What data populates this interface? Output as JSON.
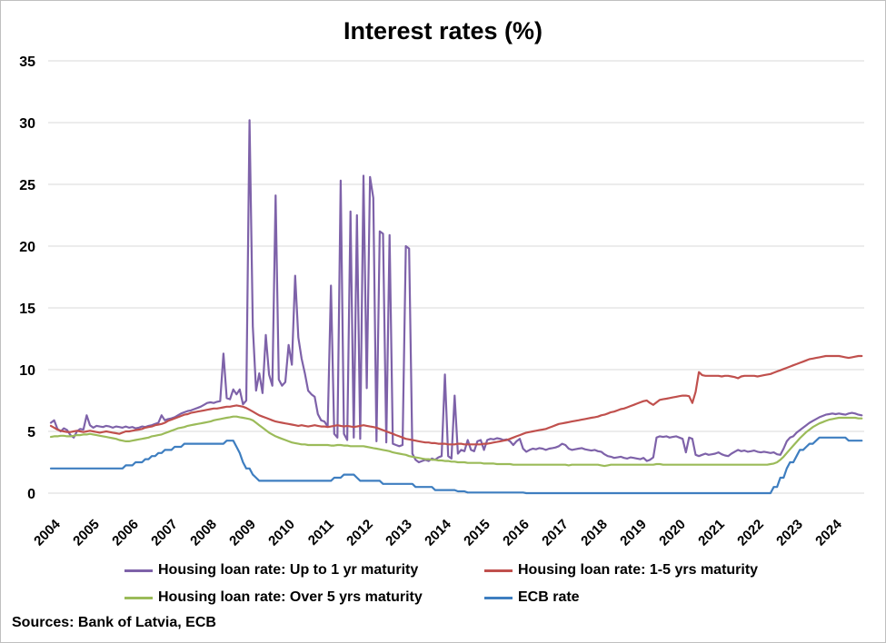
{
  "source_note": "Sources: Bank of Latvia, ECB",
  "colors": {
    "gridline": "#d9d9d9",
    "figure_border": "#bfbfbf",
    "text": "#000000"
  },
  "chart_data": {
    "type": "line",
    "title": "Interest rates (%)",
    "xlabel": "",
    "ylabel": "",
    "ylim": [
      0,
      35
    ],
    "yticks": [
      0,
      5,
      10,
      15,
      20,
      25,
      30,
      35
    ],
    "xticks": [
      2004,
      2005,
      2006,
      2007,
      2008,
      2009,
      2010,
      2011,
      2012,
      2013,
      2014,
      2015,
      2016,
      2017,
      2018,
      2019,
      2020,
      2021,
      2022,
      2023,
      2024
    ],
    "x_start_year": 2004,
    "x_interval": "monthly",
    "x_end": "2024-10",
    "grid": "horizontal",
    "legend_position": "bottom",
    "series": [
      {
        "id": "up_to_1yr",
        "name": "Housing loan rate: Up to 1 yr maturity",
        "color": "#7e62a9",
        "values": [
          5.7,
          5.9,
          5.2,
          5.0,
          5.25,
          5.1,
          4.7,
          4.5,
          5.0,
          5.2,
          5.15,
          6.3,
          5.5,
          5.3,
          5.45,
          5.4,
          5.35,
          5.45,
          5.4,
          5.3,
          5.4,
          5.35,
          5.3,
          5.4,
          5.3,
          5.35,
          5.25,
          5.3,
          5.4,
          5.35,
          5.45,
          5.5,
          5.6,
          5.7,
          6.3,
          5.9,
          6.0,
          6.05,
          6.15,
          6.3,
          6.45,
          6.55,
          6.65,
          6.7,
          6.8,
          6.9,
          7.0,
          7.15,
          7.3,
          7.35,
          7.3,
          7.4,
          7.45,
          11.3,
          7.7,
          7.6,
          8.4,
          8.0,
          8.4,
          7.2,
          7.5,
          30.2,
          13.5,
          8.3,
          9.7,
          8.1,
          12.8,
          9.6,
          8.7,
          24.1,
          9.2,
          8.7,
          9.0,
          12.0,
          10.4,
          17.6,
          12.6,
          10.9,
          9.7,
          8.3,
          8.0,
          7.8,
          6.4,
          5.9,
          5.8,
          5.4,
          16.8,
          4.8,
          4.5,
          25.3,
          4.8,
          4.3,
          22.8,
          4.5,
          22.5,
          4.4,
          25.7,
          8.5,
          25.6,
          23.9,
          4.2,
          21.2,
          21.0,
          4.1,
          20.9,
          4.0,
          3.9,
          3.8,
          3.9,
          20.0,
          19.8,
          3.2,
          2.7,
          2.5,
          2.6,
          2.7,
          2.6,
          2.8,
          2.7,
          2.9,
          3.0,
          9.6,
          3.0,
          2.8,
          7.9,
          3.2,
          3.5,
          3.4,
          4.3,
          3.5,
          3.4,
          4.2,
          4.3,
          3.5,
          4.3,
          4.4,
          4.35,
          4.45,
          4.4,
          4.3,
          4.35,
          4.2,
          3.9,
          4.2,
          4.4,
          3.6,
          3.35,
          3.5,
          3.6,
          3.55,
          3.65,
          3.6,
          3.5,
          3.6,
          3.65,
          3.7,
          3.8,
          4.0,
          3.9,
          3.6,
          3.5,
          3.55,
          3.6,
          3.65,
          3.55,
          3.5,
          3.45,
          3.5,
          3.4,
          3.35,
          3.15,
          3.0,
          2.95,
          2.85,
          2.9,
          2.95,
          2.85,
          2.8,
          2.9,
          2.85,
          2.8,
          2.75,
          2.85,
          2.6,
          2.7,
          2.9,
          4.5,
          4.6,
          4.55,
          4.6,
          4.5,
          4.55,
          4.6,
          4.5,
          4.4,
          3.3,
          4.5,
          4.4,
          3.1,
          3.0,
          3.1,
          3.2,
          3.1,
          3.15,
          3.2,
          3.3,
          3.15,
          3.05,
          3.0,
          3.2,
          3.35,
          3.5,
          3.4,
          3.45,
          3.35,
          3.4,
          3.45,
          3.35,
          3.3,
          3.35,
          3.3,
          3.25,
          3.3,
          3.15,
          3.1,
          3.6,
          4.2,
          4.5,
          4.6,
          4.9,
          5.1,
          5.3,
          5.5,
          5.7,
          5.85,
          6.0,
          6.15,
          6.25,
          6.35,
          6.4,
          6.45,
          6.4,
          6.45,
          6.4,
          6.35,
          6.45,
          6.5,
          6.45,
          6.35,
          6.3
        ]
      },
      {
        "id": "1_5yrs",
        "name": "Housing loan rate: 1-5 yrs maturity",
        "color": "#c0504d",
        "values": [
          5.45,
          5.3,
          5.15,
          5.05,
          5.0,
          4.95,
          4.95,
          5.0,
          5.05,
          5.0,
          4.95,
          5.0,
          5.05,
          5.0,
          4.95,
          4.9,
          4.95,
          5.0,
          4.95,
          4.9,
          4.85,
          4.8,
          4.9,
          5.0,
          5.0,
          5.05,
          5.1,
          5.15,
          5.2,
          5.3,
          5.35,
          5.4,
          5.5,
          5.55,
          5.6,
          5.7,
          5.85,
          5.95,
          6.05,
          6.15,
          6.25,
          6.35,
          6.4,
          6.5,
          6.55,
          6.6,
          6.65,
          6.7,
          6.75,
          6.8,
          6.85,
          6.85,
          6.9,
          6.95,
          7.0,
          7.0,
          7.05,
          7.1,
          7.05,
          7.0,
          6.9,
          6.75,
          6.6,
          6.45,
          6.3,
          6.2,
          6.1,
          6.0,
          5.9,
          5.8,
          5.75,
          5.7,
          5.65,
          5.6,
          5.55,
          5.5,
          5.45,
          5.5,
          5.45,
          5.4,
          5.45,
          5.5,
          5.45,
          5.4,
          5.4,
          5.35,
          5.4,
          5.45,
          5.5,
          5.45,
          5.4,
          5.45,
          5.4,
          5.35,
          5.4,
          5.45,
          5.5,
          5.45,
          5.4,
          5.35,
          5.3,
          5.2,
          5.1,
          5.0,
          4.9,
          4.8,
          4.7,
          4.6,
          4.5,
          4.4,
          4.35,
          4.3,
          4.25,
          4.2,
          4.15,
          4.1,
          4.1,
          4.05,
          4.05,
          4.0,
          4.0,
          4.0,
          3.95,
          3.95,
          3.95,
          4.0,
          4.0,
          3.95,
          3.95,
          3.95,
          3.95,
          3.95,
          3.95,
          4.0,
          4.0,
          4.05,
          4.1,
          4.15,
          4.2,
          4.25,
          4.3,
          4.4,
          4.5,
          4.6,
          4.7,
          4.8,
          4.9,
          4.95,
          5.0,
          5.05,
          5.1,
          5.15,
          5.2,
          5.3,
          5.4,
          5.5,
          5.6,
          5.65,
          5.7,
          5.75,
          5.8,
          5.85,
          5.9,
          5.95,
          6.0,
          6.05,
          6.1,
          6.15,
          6.2,
          6.3,
          6.35,
          6.45,
          6.55,
          6.6,
          6.7,
          6.8,
          6.85,
          6.95,
          7.05,
          7.15,
          7.25,
          7.35,
          7.45,
          7.5,
          7.3,
          7.15,
          7.35,
          7.55,
          7.6,
          7.65,
          7.7,
          7.75,
          7.8,
          7.85,
          7.9,
          7.9,
          7.85,
          7.3,
          8.2,
          9.8,
          9.55,
          9.5,
          9.5,
          9.5,
          9.5,
          9.5,
          9.45,
          9.5,
          9.5,
          9.45,
          9.4,
          9.3,
          9.45,
          9.5,
          9.5,
          9.5,
          9.5,
          9.45,
          9.5,
          9.55,
          9.6,
          9.65,
          9.75,
          9.85,
          9.95,
          10.05,
          10.15,
          10.25,
          10.35,
          10.45,
          10.55,
          10.65,
          10.75,
          10.85,
          10.9,
          10.95,
          11.0,
          11.05,
          11.1,
          11.1,
          11.1,
          11.1,
          11.1,
          11.05,
          11.0,
          10.95,
          11.0,
          11.05,
          11.1,
          11.1
        ]
      },
      {
        "id": "over_5yrs",
        "name": "Housing loan rate: Over 5 yrs maturity",
        "color": "#9bbb59",
        "values": [
          4.55,
          4.6,
          4.6,
          4.65,
          4.65,
          4.6,
          4.6,
          4.65,
          4.7,
          4.7,
          4.75,
          4.75,
          4.8,
          4.75,
          4.7,
          4.65,
          4.6,
          4.55,
          4.5,
          4.45,
          4.4,
          4.3,
          4.25,
          4.2,
          4.2,
          4.25,
          4.3,
          4.35,
          4.4,
          4.45,
          4.5,
          4.6,
          4.65,
          4.7,
          4.75,
          4.85,
          4.95,
          5.05,
          5.15,
          5.25,
          5.3,
          5.35,
          5.45,
          5.5,
          5.55,
          5.6,
          5.65,
          5.7,
          5.75,
          5.8,
          5.9,
          5.95,
          6.0,
          6.05,
          6.1,
          6.15,
          6.2,
          6.2,
          6.15,
          6.1,
          6.05,
          6.0,
          5.9,
          5.7,
          5.5,
          5.3,
          5.1,
          4.9,
          4.75,
          4.6,
          4.5,
          4.4,
          4.3,
          4.2,
          4.1,
          4.05,
          4.0,
          3.95,
          3.95,
          3.9,
          3.9,
          3.9,
          3.9,
          3.9,
          3.9,
          3.9,
          3.85,
          3.85,
          3.9,
          3.9,
          3.85,
          3.85,
          3.8,
          3.8,
          3.8,
          3.8,
          3.8,
          3.75,
          3.7,
          3.65,
          3.6,
          3.55,
          3.5,
          3.45,
          3.4,
          3.3,
          3.25,
          3.2,
          3.15,
          3.1,
          3.0,
          2.95,
          2.9,
          2.85,
          2.8,
          2.75,
          2.75,
          2.7,
          2.7,
          2.65,
          2.65,
          2.6,
          2.6,
          2.55,
          2.55,
          2.5,
          2.5,
          2.5,
          2.45,
          2.45,
          2.45,
          2.45,
          2.45,
          2.4,
          2.4,
          2.4,
          2.4,
          2.35,
          2.35,
          2.35,
          2.35,
          2.35,
          2.3,
          2.3,
          2.3,
          2.3,
          2.3,
          2.3,
          2.3,
          2.3,
          2.3,
          2.3,
          2.3,
          2.3,
          2.3,
          2.3,
          2.3,
          2.3,
          2.3,
          2.25,
          2.3,
          2.3,
          2.3,
          2.3,
          2.3,
          2.3,
          2.3,
          2.3,
          2.3,
          2.25,
          2.2,
          2.25,
          2.3,
          2.3,
          2.3,
          2.3,
          2.3,
          2.3,
          2.3,
          2.3,
          2.3,
          2.3,
          2.3,
          2.3,
          2.3,
          2.3,
          2.35,
          2.35,
          2.3,
          2.3,
          2.3,
          2.3,
          2.3,
          2.3,
          2.3,
          2.3,
          2.3,
          2.3,
          2.3,
          2.3,
          2.3,
          2.3,
          2.3,
          2.3,
          2.3,
          2.3,
          2.3,
          2.3,
          2.3,
          2.3,
          2.3,
          2.3,
          2.3,
          2.3,
          2.3,
          2.3,
          2.3,
          2.3,
          2.3,
          2.3,
          2.3,
          2.35,
          2.4,
          2.5,
          2.7,
          2.95,
          3.25,
          3.55,
          3.85,
          4.15,
          4.45,
          4.7,
          4.95,
          5.15,
          5.35,
          5.5,
          5.65,
          5.75,
          5.85,
          5.95,
          6.0,
          6.05,
          6.1,
          6.1,
          6.1,
          6.1,
          6.1,
          6.1,
          6.05,
          6.05
        ]
      },
      {
        "id": "ecb",
        "name": "ECB rate",
        "color": "#3e7ec0",
        "values": [
          2.0,
          2.0,
          2.0,
          2.0,
          2.0,
          2.0,
          2.0,
          2.0,
          2.0,
          2.0,
          2.0,
          2.0,
          2.0,
          2.0,
          2.0,
          2.0,
          2.0,
          2.0,
          2.0,
          2.0,
          2.0,
          2.0,
          2.0,
          2.25,
          2.25,
          2.25,
          2.5,
          2.5,
          2.5,
          2.75,
          2.75,
          3.0,
          3.0,
          3.25,
          3.25,
          3.5,
          3.5,
          3.5,
          3.75,
          3.75,
          3.75,
          4.0,
          4.0,
          4.0,
          4.0,
          4.0,
          4.0,
          4.0,
          4.0,
          4.0,
          4.0,
          4.0,
          4.0,
          4.0,
          4.25,
          4.25,
          4.25,
          3.75,
          3.25,
          2.5,
          2.0,
          2.0,
          1.5,
          1.25,
          1.0,
          1.0,
          1.0,
          1.0,
          1.0,
          1.0,
          1.0,
          1.0,
          1.0,
          1.0,
          1.0,
          1.0,
          1.0,
          1.0,
          1.0,
          1.0,
          1.0,
          1.0,
          1.0,
          1.0,
          1.0,
          1.0,
          1.0,
          1.25,
          1.25,
          1.25,
          1.5,
          1.5,
          1.5,
          1.5,
          1.25,
          1.0,
          1.0,
          1.0,
          1.0,
          1.0,
          1.0,
          1.0,
          0.75,
          0.75,
          0.75,
          0.75,
          0.75,
          0.75,
          0.75,
          0.75,
          0.75,
          0.75,
          0.5,
          0.5,
          0.5,
          0.5,
          0.5,
          0.5,
          0.25,
          0.25,
          0.25,
          0.25,
          0.25,
          0.25,
          0.25,
          0.15,
          0.15,
          0.15,
          0.05,
          0.05,
          0.05,
          0.05,
          0.05,
          0.05,
          0.05,
          0.05,
          0.05,
          0.05,
          0.05,
          0.05,
          0.05,
          0.05,
          0.05,
          0.05,
          0.05,
          0.05,
          0.0,
          0.0,
          0.0,
          0.0,
          0.0,
          0.0,
          0.0,
          0.0,
          0.0,
          0.0,
          0.0,
          0.0,
          0.0,
          0.0,
          0.0,
          0.0,
          0.0,
          0.0,
          0.0,
          0.0,
          0.0,
          0.0,
          0.0,
          0.0,
          0.0,
          0.0,
          0.0,
          0.0,
          0.0,
          0.0,
          0.0,
          0.0,
          0.0,
          0.0,
          0.0,
          0.0,
          0.0,
          0.0,
          0.0,
          0.0,
          0.0,
          0.0,
          0.0,
          0.0,
          0.0,
          0.0,
          0.0,
          0.0,
          0.0,
          0.0,
          0.0,
          0.0,
          0.0,
          0.0,
          0.0,
          0.0,
          0.0,
          0.0,
          0.0,
          0.0,
          0.0,
          0.0,
          0.0,
          0.0,
          0.0,
          0.0,
          0.0,
          0.0,
          0.0,
          0.0,
          0.0,
          0.0,
          0.0,
          0.0,
          0.0,
          0.0,
          0.5,
          0.5,
          1.25,
          1.25,
          2.0,
          2.5,
          2.5,
          3.0,
          3.5,
          3.5,
          3.75,
          4.0,
          4.0,
          4.25,
          4.5,
          4.5,
          4.5,
          4.5,
          4.5,
          4.5,
          4.5,
          4.5,
          4.5,
          4.25,
          4.25,
          4.25,
          4.25,
          4.25
        ]
      }
    ]
  }
}
